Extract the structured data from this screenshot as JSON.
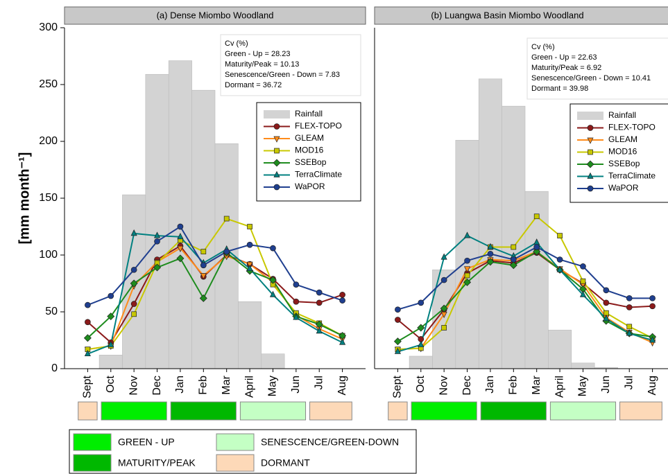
{
  "chart_data": [
    {
      "type": "line",
      "title": "(a) Dense Miombo Woodland",
      "ylabel": "[mm month⁻¹]",
      "categories": [
        "Sept",
        "Oct",
        "Nov",
        "Dec",
        "Jan",
        "Feb",
        "Mar",
        "April",
        "May",
        "Jun",
        "Jul",
        "Aug"
      ],
      "ylim": [
        0,
        300
      ],
      "yticks": [
        0,
        50,
        100,
        150,
        200,
        250,
        300
      ],
      "annotation": [
        "Cv (%)",
        "Green - Up = 28.23",
        "Maturity/Peak = 10.13",
        "Senescence/Green - Down = 7.83",
        "Dormant = 36.72"
      ],
      "series": [
        {
          "name": "Rainfall",
          "type": "bar",
          "color": "#d3d3d3",
          "values": [
            0,
            12,
            153,
            259,
            271,
            245,
            198,
            59,
            13,
            0,
            0,
            0
          ]
        },
        {
          "name": " FLEX-TOPO",
          "marker": "circle",
          "color": "#8b1a1a",
          "values": [
            41,
            23,
            57,
            96,
            108,
            81,
            100,
            92,
            79,
            59,
            58,
            65
          ]
        },
        {
          "name": "GLEAM",
          "marker": "tri-down",
          "color": "#ff8c1a",
          "values": [
            17,
            20,
            73,
            94,
            106,
            82,
            99,
            92,
            76,
            47,
            35,
            26
          ]
        },
        {
          "name": "MOD16",
          "marker": "square",
          "color": "#c8c800",
          "values": [
            17,
            20,
            48,
            93,
            113,
            103,
            132,
            125,
            74,
            49,
            40,
            29
          ]
        },
        {
          "name": "SSEBop",
          "marker": "diamond",
          "color": "#1e8c1e",
          "values": [
            27,
            46,
            75,
            89,
            97,
            62,
            102,
            86,
            78,
            46,
            39,
            29
          ]
        },
        {
          "name": "TerraClimate",
          "marker": "tri-up",
          "color": "#008080",
          "values": [
            13,
            21,
            119,
            117,
            116,
            93,
            105,
            88,
            65,
            45,
            33,
            23
          ]
        },
        {
          "name": "WaPOR",
          "marker": "hexagon",
          "color": "#1f3f8f",
          "values": [
            56,
            64,
            87,
            112,
            125,
            91,
            103,
            109,
            106,
            74,
            67,
            60
          ]
        }
      ]
    },
    {
      "type": "line",
      "title": "(b) Luangwa Basin Miombo Woodland",
      "categories": [
        "Sept",
        "Oct",
        "Nov",
        "Dec",
        "Jan",
        "Feb",
        "Mar",
        "April",
        "May",
        "Jun",
        "Jul",
        "Aug"
      ],
      "ylim": [
        0,
        300
      ],
      "annotation": [
        "Cv (%)",
        "Green - Up = 22.63",
        "Maturity/Peak = 6.92",
        "Senescence/Green - Down = 10.41",
        "Dormant = 39.98"
      ],
      "series": [
        {
          "name": "Rainfall",
          "type": "bar",
          "color": "#d3d3d3",
          "values": [
            0,
            11,
            87,
            201,
            255,
            231,
            156,
            34,
            5,
            1,
            0,
            0
          ]
        },
        {
          "name": "FLEX-TOPO",
          "marker": "circle",
          "color": "#8b1a1a",
          "values": [
            43,
            26,
            52,
            84,
            95,
            93,
            102,
            87,
            75,
            58,
            54,
            55
          ]
        },
        {
          "name": "GLEAM",
          "marker": "tri-down",
          "color": "#ff8c1a",
          "values": [
            17,
            18,
            48,
            88,
            96,
            95,
            103,
            88,
            74,
            45,
            32,
            23
          ]
        },
        {
          "name": " MOD16",
          "marker": "square",
          "color": "#c8c800",
          "values": [
            17,
            18,
            36,
            82,
            107,
            107,
            134,
            117,
            77,
            49,
            37,
            27
          ]
        },
        {
          "name": "SSEBop",
          "marker": "diamond",
          "color": "#1e8c1e",
          "values": [
            24,
            36,
            53,
            76,
            94,
            91,
            103,
            87,
            70,
            42,
            31,
            28
          ]
        },
        {
          "name": "TerraClimate",
          "marker": "tri-up",
          "color": "#008080",
          "values": [
            15,
            21,
            98,
            117,
            107,
            99,
            111,
            87,
            65,
            44,
            31,
            25
          ]
        },
        {
          "name": "WaPOR",
          "marker": "hexagon",
          "color": "#1f3f8f",
          "values": [
            52,
            58,
            78,
            95,
            101,
            96,
            107,
            96,
            90,
            69,
            62,
            62
          ]
        }
      ]
    }
  ],
  "phase_legend": [
    {
      "label": "GREEN - UP",
      "color": "#00ee00"
    },
    {
      "label": "MATURITY/PEAK",
      "color": "#00b800"
    },
    {
      "label": "SENESCENCE/GREEN-DOWN",
      "color": "#c4ffc4"
    },
    {
      "label": "DORMANT",
      "color": "#fdd9b8"
    }
  ]
}
